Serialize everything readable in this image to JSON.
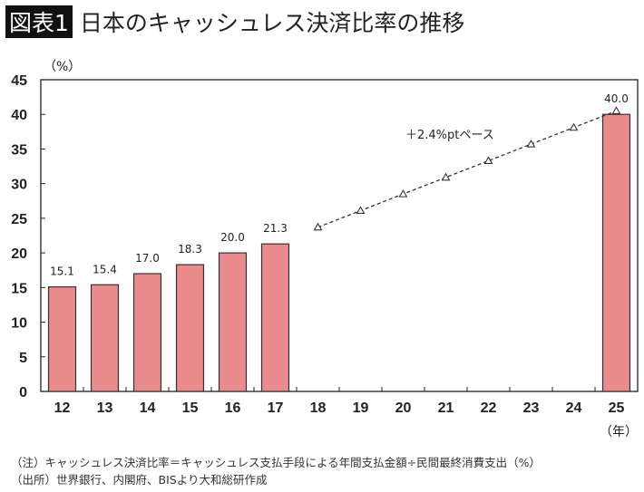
{
  "title": {
    "badge": "図表1",
    "text": "日本のキャッシュレス決済比率の推移"
  },
  "chart_data": {
    "type": "bar",
    "categories": [
      "12",
      "13",
      "14",
      "15",
      "16",
      "17",
      "18",
      "19",
      "20",
      "21",
      "22",
      "23",
      "24",
      "25"
    ],
    "series": [
      {
        "type": "bar",
        "values": [
          15.1,
          15.4,
          17.0,
          18.3,
          20.0,
          21.3,
          null,
          null,
          null,
          null,
          null,
          null,
          null,
          40.0
        ],
        "color": "#E98A8C"
      },
      {
        "type": "line",
        "style": "dashed",
        "marker": "triangle",
        "values": [
          null,
          null,
          null,
          null,
          null,
          null,
          23.7,
          26.1,
          28.5,
          30.9,
          33.3,
          35.7,
          38.1,
          40.5
        ],
        "color": "#333333"
      }
    ],
    "data_labels": [
      "15.1",
      "15.4",
      "17.0",
      "18.3",
      "20.0",
      "21.3",
      null,
      null,
      null,
      null,
      null,
      null,
      null,
      "40.0"
    ],
    "annotation": "＋2.4%ptペース",
    "ylabel": "（%）",
    "xlabel": "（年）",
    "ylim": [
      0,
      45
    ],
    "yticks": [
      "0",
      "5",
      "10",
      "15",
      "20",
      "25",
      "30",
      "35",
      "40",
      "45"
    ],
    "grid": false
  },
  "notes": [
    "（注）キャッシュレス決済比率＝キャッシュレス支払手段による年間支払金額÷民間最終消費支出（%）",
    "（出所）世界銀行、内閣府、BISより大和総研作成"
  ]
}
